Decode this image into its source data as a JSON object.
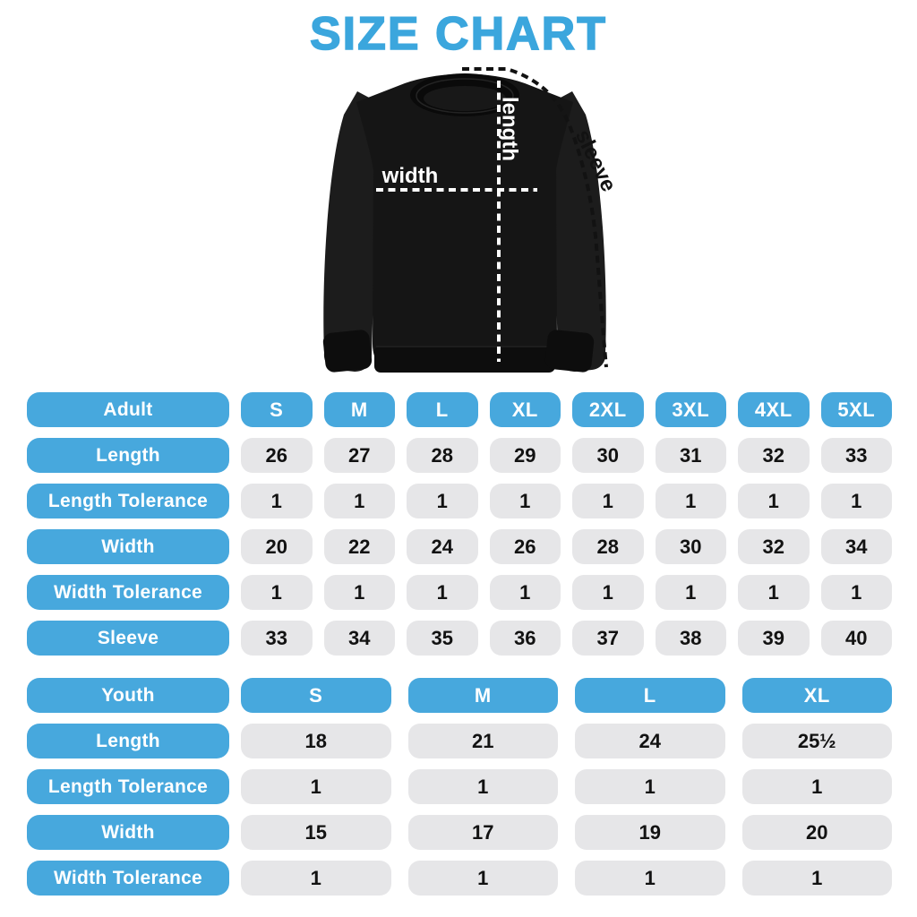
{
  "title": "SIZE CHART",
  "figure": {
    "width_label": "width",
    "length_label": "length",
    "sleeve_label": "sleeve"
  },
  "colors": {
    "accent_blue": "#47a8dd",
    "title_blue": "#3ba6dd",
    "cell_gray": "#e6e6e8",
    "value_text": "#121212",
    "shirt_black": "#151515",
    "background": "#ffffff"
  },
  "chart_data": [
    {
      "type": "table",
      "id": "adult",
      "header_label": "Adult",
      "columns": [
        "S",
        "M",
        "L",
        "XL",
        "2XL",
        "3XL",
        "4XL",
        "5XL"
      ],
      "rows": [
        {
          "label": "Length",
          "values": [
            "26",
            "27",
            "28",
            "29",
            "30",
            "31",
            "32",
            "33"
          ]
        },
        {
          "label": "Length Tolerance",
          "values": [
            "1",
            "1",
            "1",
            "1",
            "1",
            "1",
            "1",
            "1"
          ]
        },
        {
          "label": "Width",
          "values": [
            "20",
            "22",
            "24",
            "26",
            "28",
            "30",
            "32",
            "34"
          ]
        },
        {
          "label": "Width Tolerance",
          "values": [
            "1",
            "1",
            "1",
            "1",
            "1",
            "1",
            "1",
            "1"
          ]
        },
        {
          "label": "Sleeve",
          "values": [
            "33",
            "34",
            "35",
            "36",
            "37",
            "38",
            "39",
            "40"
          ]
        }
      ]
    },
    {
      "type": "table",
      "id": "youth",
      "header_label": "Youth",
      "columns": [
        "S",
        "M",
        "L",
        "XL"
      ],
      "rows": [
        {
          "label": "Length",
          "values": [
            "18",
            "21",
            "24",
            "25½"
          ]
        },
        {
          "label": "Length Tolerance",
          "values": [
            "1",
            "1",
            "1",
            "1"
          ]
        },
        {
          "label": "Width",
          "values": [
            "15",
            "17",
            "19",
            "20"
          ]
        },
        {
          "label": "Width Tolerance",
          "values": [
            "1",
            "1",
            "1",
            "1"
          ]
        }
      ]
    }
  ]
}
